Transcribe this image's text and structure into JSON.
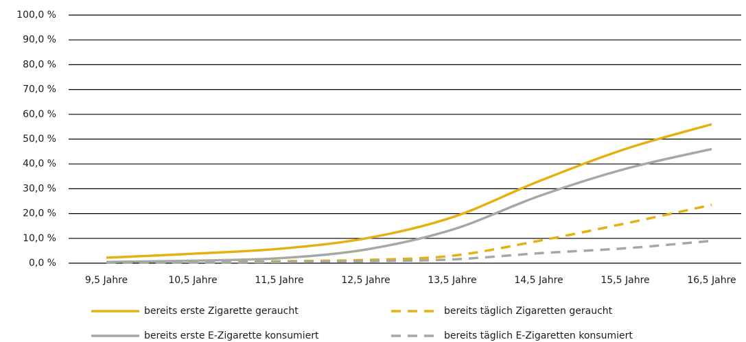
{
  "chart_data": {
    "type": "line",
    "categories": [
      "9,5 Jahre",
      "10,5 Jahre",
      "11,5 Jahre",
      "12,5 Jahre",
      "13,5 Jahre",
      "14,5 Jahre",
      "15,5 Jahre",
      "16,5 Jahre"
    ],
    "series": [
      {
        "name": "bereits erste Zigarette geraucht",
        "color": "#e6b012",
        "dashed": false,
        "values": [
          2.2,
          3.8,
          5.8,
          10.0,
          18.5,
          33.0,
          46.0,
          56.0
        ]
      },
      {
        "name": "bereits täglich Zigaretten geraucht",
        "color": "#e6b012",
        "dashed": true,
        "values": [
          0.3,
          0.5,
          0.8,
          1.3,
          3.0,
          9.0,
          16.0,
          23.5
        ]
      },
      {
        "name": "bereits erste E-Zigarette konsumiert",
        "color": "#a4a9a4",
        "dashed": false,
        "values": [
          0.5,
          1.0,
          2.0,
          5.5,
          13.5,
          27.0,
          38.0,
          46.0
        ]
      },
      {
        "name": "bereits täglich E-Zigaretten konsumiert",
        "color": "#a4a9a4",
        "dashed": true,
        "values": [
          0.2,
          0.3,
          0.5,
          0.8,
          1.5,
          4.0,
          6.0,
          9.0
        ]
      }
    ],
    "ylim": [
      0,
      100
    ],
    "yticks": [
      {
        "value": 0,
        "label": "0,0 %"
      },
      {
        "value": 10,
        "label": "10,0 %"
      },
      {
        "value": 20,
        "label": "20,0 %"
      },
      {
        "value": 30,
        "label": "30,0 %"
      },
      {
        "value": 40,
        "label": "40,0 %"
      },
      {
        "value": 50,
        "label": "50,0 %"
      },
      {
        "value": 60,
        "label": "60,0 %"
      },
      {
        "value": 70,
        "label": "70,0 %"
      },
      {
        "value": 80,
        "label": "80,0 %"
      },
      {
        "value": 90,
        "label": "90,0 %"
      },
      {
        "value": 100,
        "label": "100,0 %"
      }
    ],
    "grid": true
  }
}
